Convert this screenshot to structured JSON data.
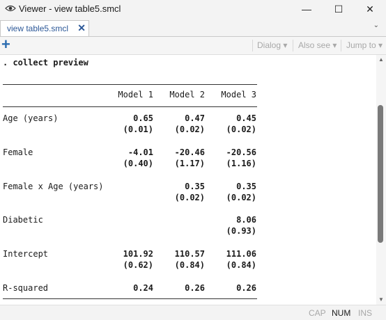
{
  "window": {
    "title": "Viewer - view table5.smcl",
    "minimize_glyph": "—",
    "maximize_glyph": "☐",
    "close_glyph": "✕"
  },
  "tab": {
    "label": "view table5.smcl",
    "close_glyph": "✕",
    "chevron_glyph": "⌄"
  },
  "toolbar": {
    "add_glyph": "+",
    "dialog_label": "Dialog",
    "also_see_label": "Also see",
    "jump_to_label": "Jump to",
    "dropdown_glyph": "▾"
  },
  "content": {
    "command": ". collect preview",
    "headers": [
      "Model 1",
      "Model 2",
      "Model 3"
    ],
    "rows": [
      {
        "label": "Age (years)",
        "coef": [
          "0.65",
          "0.47",
          "0.45"
        ],
        "se": [
          "(0.01)",
          "(0.02)",
          "(0.02)"
        ]
      },
      {
        "label": "Female",
        "coef": [
          "-4.01",
          "-20.46",
          "-20.56"
        ],
        "se": [
          "(0.40)",
          "(1.17)",
          "(1.16)"
        ]
      },
      {
        "label": "Female x Age (years)",
        "coef": [
          "",
          "0.35",
          "0.35"
        ],
        "se": [
          "",
          "(0.02)",
          "(0.02)"
        ]
      },
      {
        "label": "Diabetic",
        "coef": [
          "",
          "",
          "8.06"
        ],
        "se": [
          "",
          "",
          "(0.93)"
        ]
      },
      {
        "label": "Intercept",
        "coef": [
          "101.92",
          "110.57",
          "111.06"
        ],
        "se": [
          "(0.62)",
          "(0.84)",
          "(0.84)"
        ]
      },
      {
        "label": "R-squared",
        "coef": [
          "0.24",
          "0.26",
          "0.26"
        ],
        "se": [
          "",
          "",
          ""
        ]
      }
    ]
  },
  "status": {
    "cap": "CAP",
    "num": "NUM",
    "ins": "INS"
  },
  "colors": {
    "accent": "#2b5797",
    "add_icon": "#2b6cb0",
    "disabled": "#a8a8a8"
  }
}
